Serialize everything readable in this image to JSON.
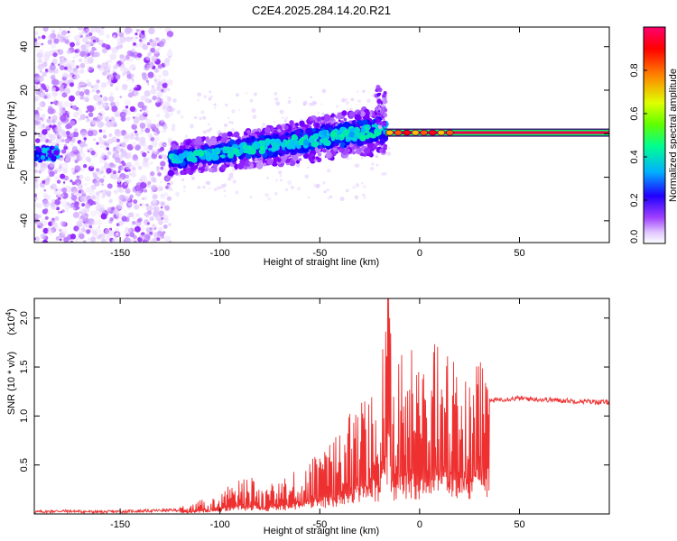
{
  "figure_title": "C2E4.2025.284.14.20.R21",
  "colors": {
    "snr_line": "#ee3030",
    "band_core": "#e8004c",
    "band_edge": "#00ff66",
    "background": "#ffffff"
  },
  "chart_data": [
    {
      "type": "heatmap",
      "title": "C2E4.2025.284.14.20.R21",
      "xlabel": "Height of straight line (km)",
      "ylabel": "Frequency (Hz)",
      "xlim": [
        -193,
        95
      ],
      "ylim": [
        -50,
        49
      ],
      "xticks": [
        -150,
        -100,
        -50,
        0,
        50
      ],
      "yticks": [
        -40,
        -20,
        0,
        20,
        40
      ],
      "xtick_labels": [
        "-150",
        "-100",
        "-50",
        "0",
        "50"
      ],
      "ytick_labels": [
        "-40",
        "-20",
        "0",
        "20",
        "40"
      ],
      "colorbar": {
        "label": "Normalized spectral amplitude",
        "range": [
          0,
          1
        ],
        "ticks": [
          0.0,
          0.2,
          0.4,
          0.6,
          0.8
        ],
        "tick_labels": [
          "0.0",
          "0.2",
          "0.4",
          "0.6",
          "0.8"
        ],
        "colormap": [
          "#ffffff",
          "#d8b8ff",
          "#8000ff",
          "#0000ff",
          "#00c0ff",
          "#00ff80",
          "#80ff00",
          "#ffff00",
          "#ff8000",
          "#ff0000",
          "#ff0080"
        ]
      },
      "regions": {
        "noise_band": {
          "x": [
            -193,
            -125
          ],
          "freq": [
            -50,
            49
          ]
        },
        "sloped_trace": {
          "x": [
            -125,
            -17
          ],
          "freq_start": -12,
          "freq_end": 2
        },
        "narrow_band": {
          "x": [
            -17,
            95
          ],
          "freq": 0.5
        }
      }
    },
    {
      "type": "line",
      "title": "",
      "xlabel": "Height of straight line (km)",
      "ylabel": "SNR (10 * v/v)",
      "y_multiplier_label": "(x10",
      "y_multiplier_exponent": "4",
      "y_multiplier_close": ")",
      "xlim": [
        -193,
        95
      ],
      "ylim": [
        0,
        22000
      ],
      "xticks": [
        -150,
        -100,
        -50,
        0,
        50
      ],
      "yticks": [
        5000,
        10000,
        15000,
        20000
      ],
      "xtick_labels": [
        "-150",
        "-100",
        "-50",
        "0",
        "50"
      ],
      "ytick_labels": [
        "0.5",
        "1.0",
        "1.5",
        "2.0"
      ],
      "series": [
        {
          "name": "SNR",
          "x": [
            -193,
            -180,
            -160,
            -140,
            -120,
            -110,
            -100,
            -95,
            -90,
            -85,
            -80,
            -75,
            -70,
            -65,
            -60,
            -55,
            -50,
            -45,
            -40,
            -35,
            -30,
            -25,
            -20,
            -17,
            -15,
            -14,
            -12,
            -10,
            -5,
            0,
            5,
            10,
            15,
            20,
            25,
            30,
            35,
            40,
            50,
            60,
            70,
            80,
            95
          ],
          "values": [
            200,
            300,
            200,
            300,
            400,
            800,
            1200,
            1800,
            2000,
            2200,
            1800,
            1800,
            2000,
            2300,
            2800,
            3200,
            3600,
            4200,
            5000,
            6000,
            6800,
            7500,
            8500,
            12000,
            22000,
            9000,
            7000,
            10000,
            10500,
            9500,
            11000,
            11500,
            9500,
            8000,
            9000,
            10500,
            11500,
            11700,
            11800,
            11700,
            11600,
            11500,
            11400
          ]
        }
      ]
    }
  ]
}
